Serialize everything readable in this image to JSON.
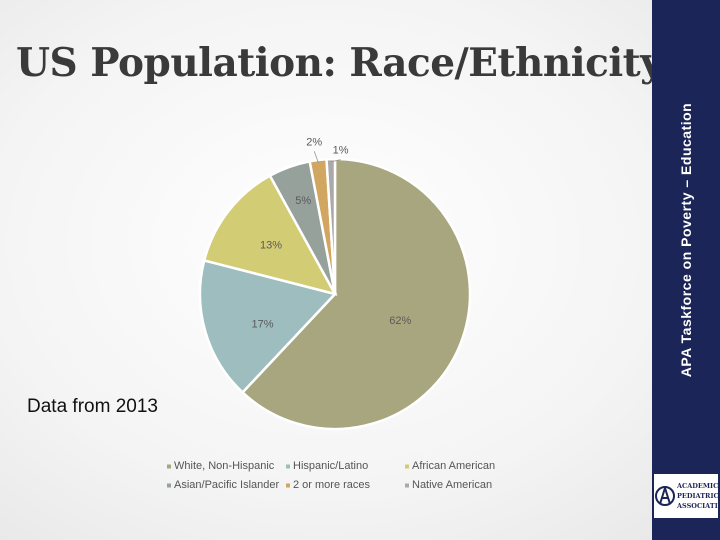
{
  "slide": {
    "title": "US Population: Race/Ethnicity",
    "vertical_label": "APA Taskforce on Poverty – Education",
    "note": "Data from 2013",
    "logo_text": [
      "ACADEMIC",
      "PEDIATRIC",
      "ASSOCIATION"
    ]
  },
  "chart_data": {
    "type": "pie",
    "title": "",
    "categories": [
      "White, Non-Hispanic",
      "Hispanic/Latino",
      "African American",
      "Asian/Pacific Islander",
      "2 or more races",
      "Native American"
    ],
    "values": [
      62,
      17,
      13,
      5,
      2,
      1
    ],
    "labels": [
      "62%",
      "17%",
      "13%",
      "5%",
      "2%",
      "1%"
    ],
    "colors": [
      "#a8a67e",
      "#9ebdbf",
      "#d2cc74",
      "#96a19c",
      "#d0a660",
      "#a8a9a8"
    ],
    "legend": "bottom",
    "start_angle_deg": 0,
    "direction": "clockwise"
  }
}
